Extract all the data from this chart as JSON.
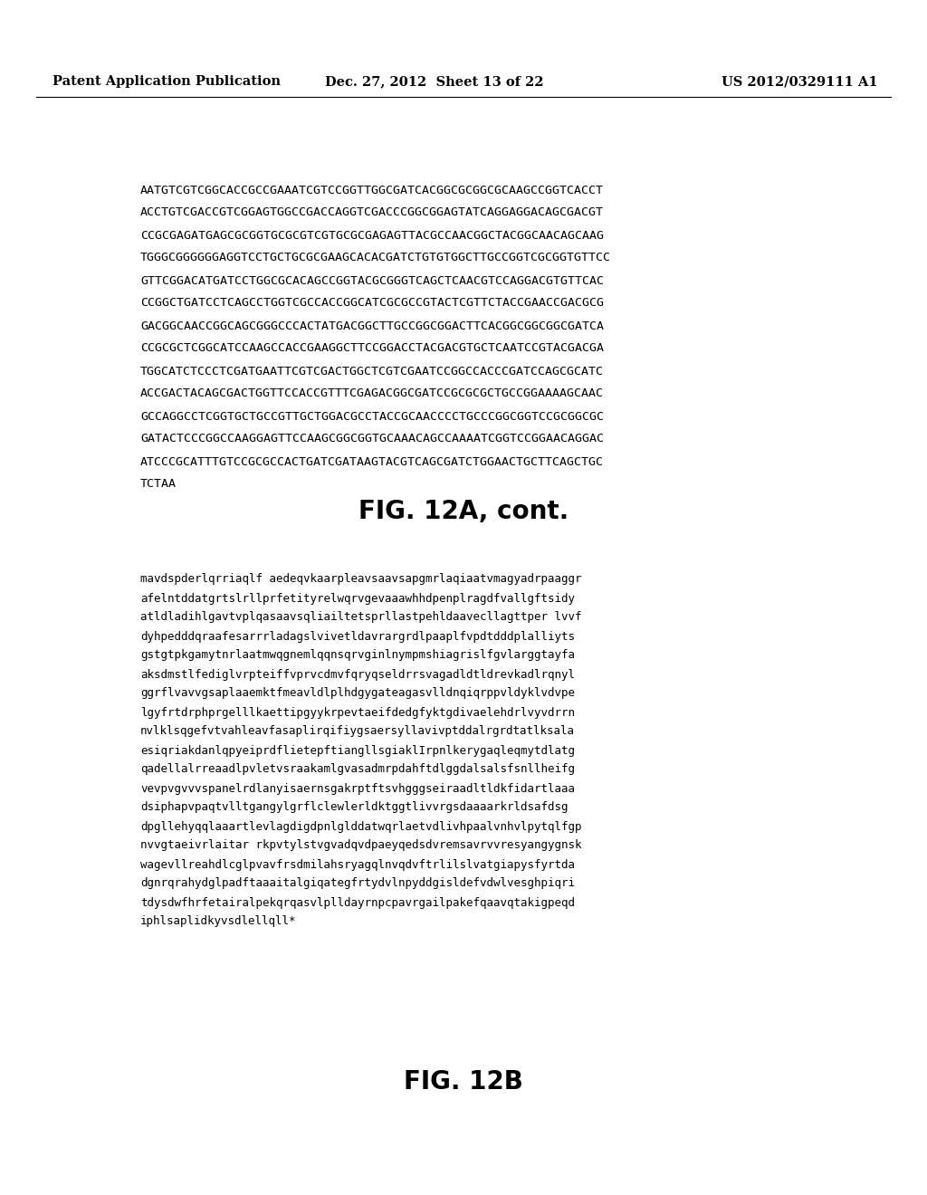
{
  "header_left": "Patent Application Publication",
  "header_center": "Dec. 27, 2012  Sheet 13 of 22",
  "header_right": "US 2012/0329111 A1",
  "dna_lines": [
    "AATGTCGTCGGCACCGCCGAAATCGTCCGGTTGGCGATCACGGCGCGGCGCAAGCCGGTCACCT",
    "ACCTGTCGACCGTCGGAGTGGCCGACCAGGTCGACCCGGCGGAGTATCAGGAGGACAGCGACGT",
    "CCGCGAGATGAGCGCGGTGCGCGTCGTGCGCGAGAGTTACGCCAACGGCTACGGCAACAGCAAG",
    "TGGGCGGGGGGAGGTCCTGCTGCGCGAAGCACACGATCTGTGTGGCTTGCCGGTCGCGGTGTTCC",
    "GTTCGGACATGATCCTGGCGCACAGCCGGTACGCGGGTCAGCTCAACGTCCAGGACGTGTTCAC",
    "CCGGCTGATCCTCAGCCTGGTCGCCACCGGCATCGCGCCGTACTCGTTCTACCGAACCGACGCG",
    "GACGGCAACCGGCAGCGGGCCCACTATGACGGCTTGCCGGCGGACTTCACGGCGGCGGCGATCA",
    "CCGCGCTCGGCATCCAAGCCACCGAAGGCTTCCGGACCTACGACGTGCTCAATCCGTACGACGA",
    "TGGCATCTCCCTCGATGAATTCGTCGACTGGCTCGTCGAATCCGGCCACCCGATCCAGCGCATC",
    "ACCGACTACAGCGACTGGTTCCACCGTTTCGAGACGGCGATCCGCGCGCTGCCGGAAAAGCAAC",
    "GCCAGGCCTCGGTGCTGCCGTTGCTGGACGCCTACCGCAACCCCTGCCCGGCGGTCCGCGGCGC",
    "GATACTCCCGGCCAAGGAGTTCCAAGCGGCGGTGCAAACAGCCAAAATCGGTCCGGAACAGGAC",
    "ATCCCGCATTTGTCCGCGCCACTGATCGATAAGTACGTCAGCGATCTGGAACTGCTTCAGCTGC",
    "TCTAA"
  ],
  "fig_label_1": "FIG. 12A, cont.",
  "protein_lines": [
    "mavdspderlqrriaqlf aedeqvkaarpleavsaavsapgmrlaqiaatvmagyadrpaaggr",
    "afelntddatgrtslrllprfetityrelwqrvgevaaawhhdpenplragdfvallgftsidy",
    "atldladihlgavtvplqasaavsqliailtetsprllastpehldaavecllagttper lvvf",
    "dyhpedddqraafesarrrladagslvivetldavrargrdlpaaplfvpdtdddplalliyts",
    "gstgtpkgamytnrlaatmwqgnemlqqnsqrvginlnympmshiagrislfgvlarggtayfa",
    "aksdmstlfediglvrpteiffvprvcdmvfqryqseldrrsvagadldtldrevkadlrqnyl",
    "ggrflvavvgsaplaaemktfmeavldlplhdgygateagasvlldnqiqrppvldyklvdvpe",
    "lgyfrtdrphprgelllkaettipgyykrpevtaeifdedgfyktgdivaelehdrlvyvdrrn",
    "nvlklsqgefvtvahleavfasaplirqifiygsaersyllavivptddalrgrdtatlksala",
    "esiqriakdanlqpyeiprdflietepftiangllsgiaklIrpnlkerygaqleqmytdlatg",
    "qadellalrreaadlpvletvsraakamlgvasadmrpdahftdlggdalsalsfsnllheifg",
    "vevpvgvvvspanelrdlanyisaernsgakrptftsvhgggseiraadltldkfidartlaaa",
    "dsiphapvpaqtvlltgangylgrflclewlerldktggtlivvrgsdaaaarkrldsafdsg",
    "dpgllehyqqlaaartlevlagdigdpnlglddatwqrlaetvdlivhpaalvnhvlpytqlfgp",
    "nvvgtaeivrlaitar rkpvtylstvgvadqvdpaeyqedsdvremsavrvvresyangygnsk",
    "wagevllreahdlcglpvavfrsdmilahsryagqlnvqdvftrlilslvatgiapysfyrtda",
    "dgnrqrahydglpadftaaaitalgiqategfrtydvlnpyddgisldefvdwlvesghpiqri",
    "tdysdwfhrfetairalpekqrqasvlplldayrnpcpavrgailpakefqaavqtakigpeqd",
    "iphlsaplidkyvsdlellqll*"
  ],
  "fig_label_2": "FIG. 12B",
  "bg_color": "#ffffff",
  "text_color": "#000000",
  "header_fontsize": 10.5,
  "dna_fontsize": 9.5,
  "fig_label_fontsize": 20,
  "protein_fontsize": 9.0
}
